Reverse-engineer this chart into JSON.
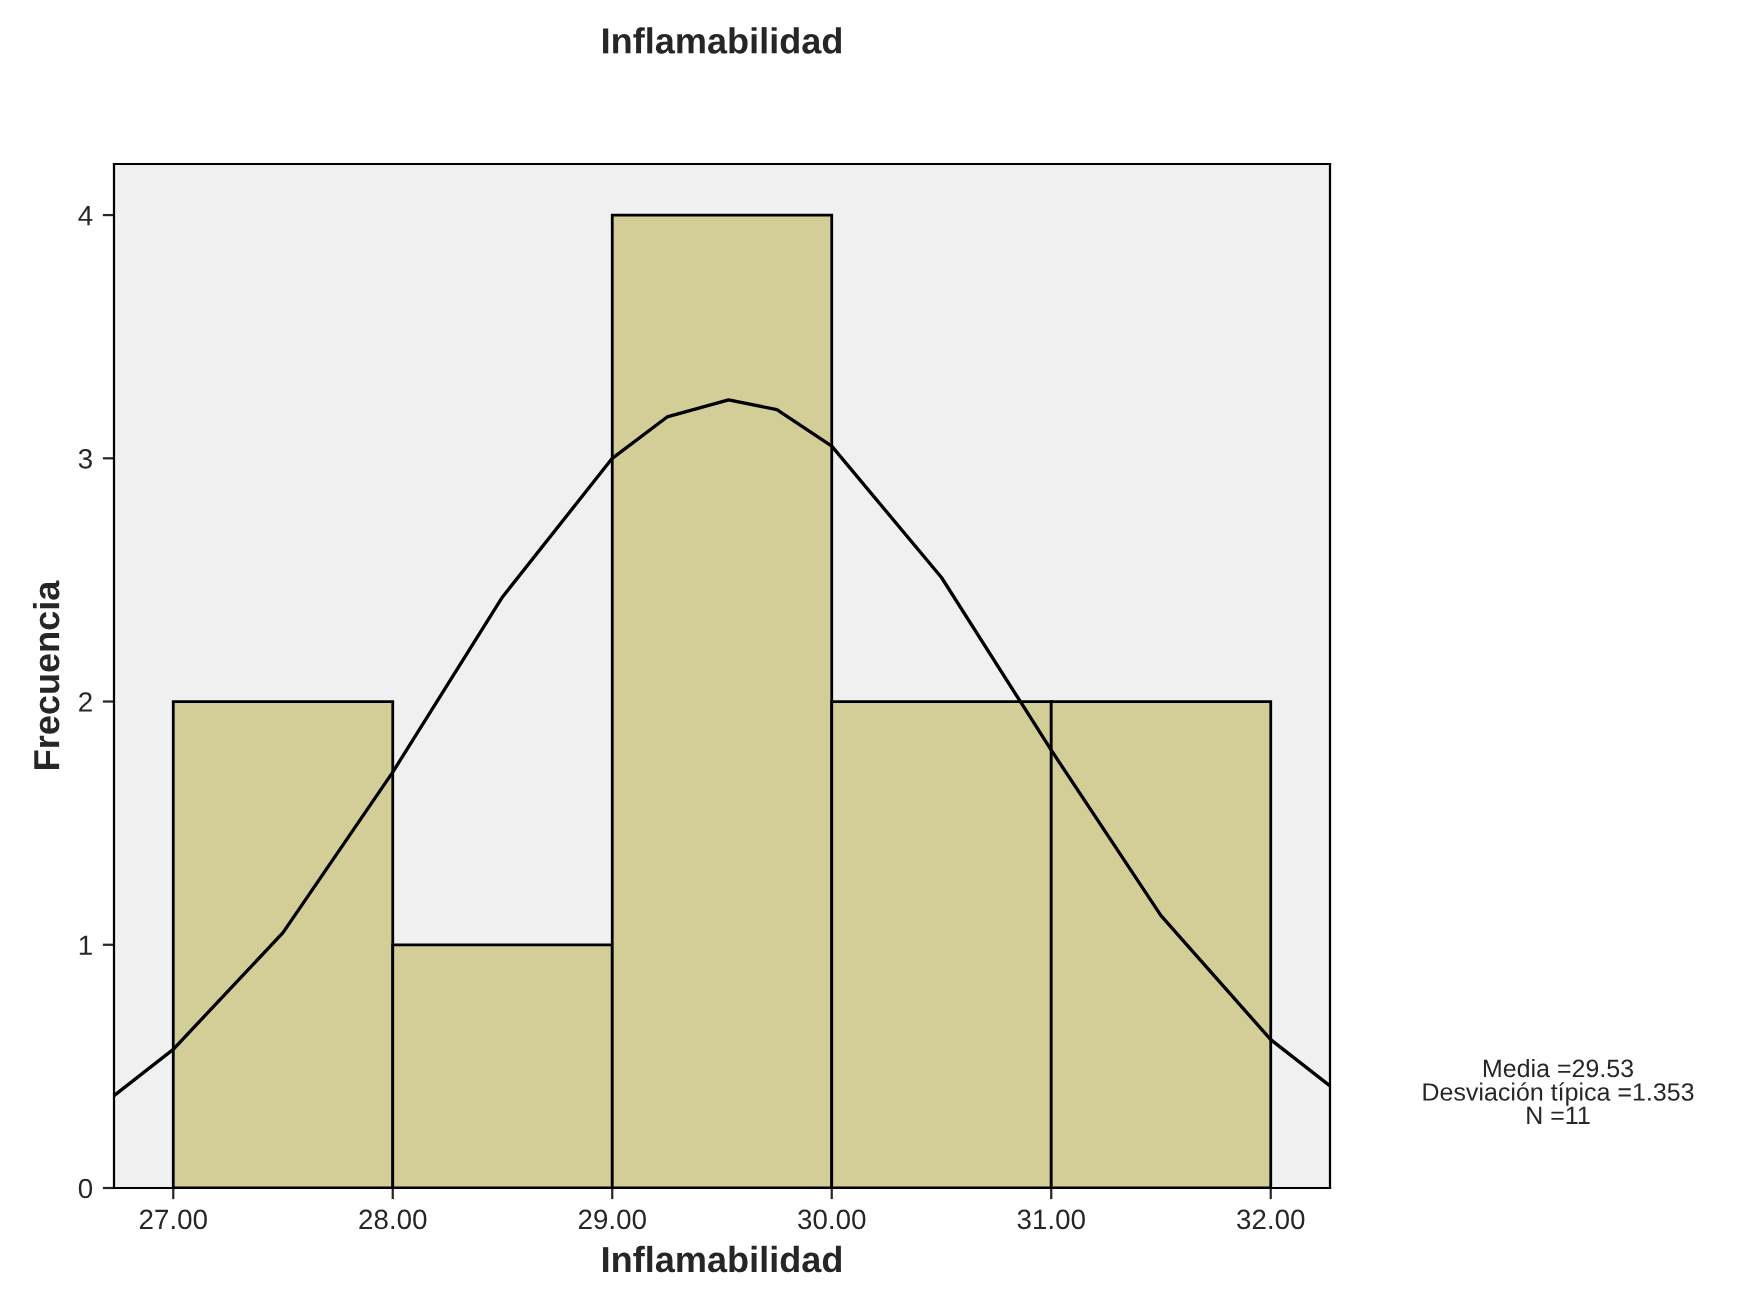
{
  "chart_data": {
    "type": "histogram",
    "title": "Inflamabilidad",
    "xlabel": "Inflamabilidad",
    "ylabel": "Frecuencia",
    "bins": [
      27,
      28,
      29,
      30,
      31,
      32
    ],
    "values": [
      2,
      1,
      4,
      2,
      2
    ],
    "color": "#d3ce98",
    "series": [
      {
        "type": "line",
        "color": "#000000",
        "x": [
          26.73,
          27.0,
          27.5,
          28.0,
          28.5,
          29.0,
          29.25,
          29.53,
          29.75,
          30.0,
          30.5,
          31.0,
          31.5,
          32.0,
          32.27
        ],
        "values": [
          0.38,
          0.57,
          1.05,
          1.71,
          2.43,
          3.0,
          3.17,
          3.24,
          3.2,
          3.05,
          2.51,
          1.8,
          1.12,
          0.61,
          0.42
        ]
      }
    ],
    "xlim": [
      26.73,
      32.27
    ],
    "ylim": [
      0,
      4.21
    ],
    "xticks": [
      {
        "value": 27,
        "label": "27.00"
      },
      {
        "value": 28,
        "label": "28.00"
      },
      {
        "value": 29,
        "label": "29.00"
      },
      {
        "value": 30,
        "label": "30.00"
      },
      {
        "value": 31,
        "label": "31.00"
      },
      {
        "value": 32,
        "label": "32.00"
      }
    ],
    "yticks": [
      0,
      1,
      2,
      3,
      4
    ],
    "annotations": [
      "Media =29.53\nDesviación típica =1.353\nN =11"
    ],
    "grid": false,
    "legend": false
  }
}
